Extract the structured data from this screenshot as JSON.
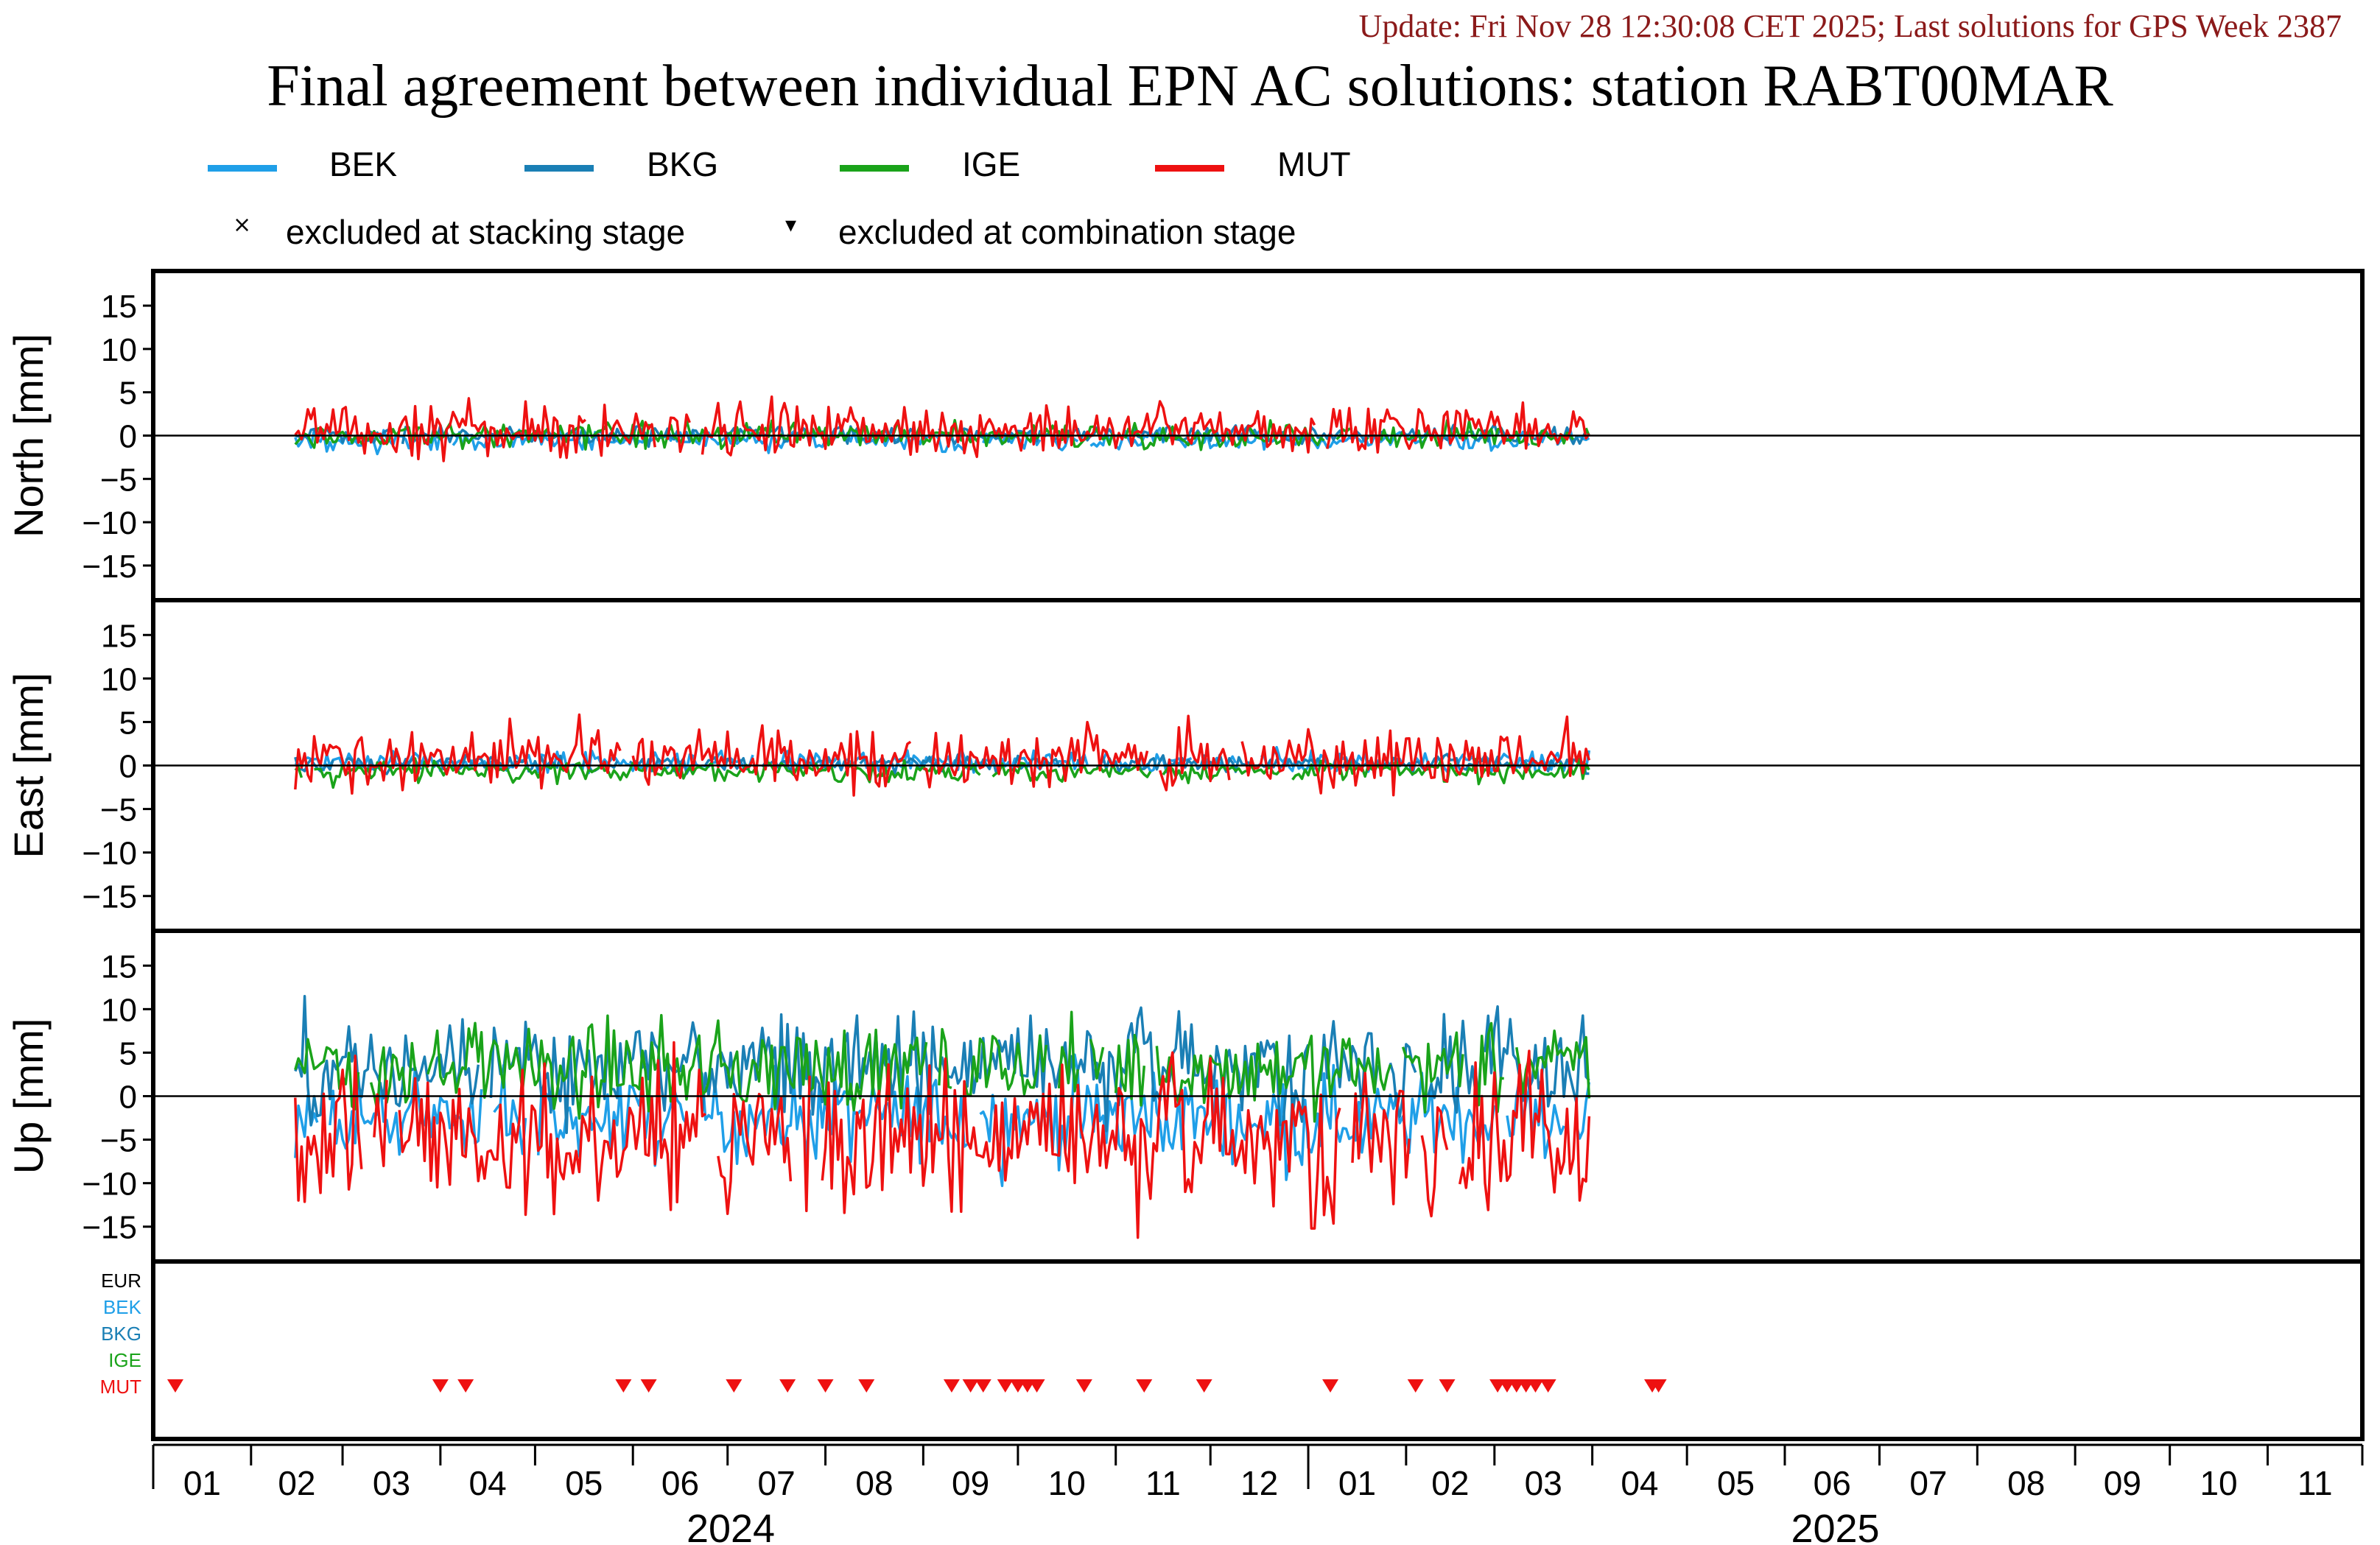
{
  "header": {
    "update_text": "Update: Fri Nov 28 12:30:08 CET 2025; Last solutions for GPS Week 2387",
    "title": "Final agreement between individual EPN AC solutions: station RABT00MAR"
  },
  "legend": {
    "series": [
      {
        "name": "BEK",
        "color": "#1f9fe8"
      },
      {
        "name": "BKG",
        "color": "#1a7fb5"
      },
      {
        "name": "IGE",
        "color": "#1aa31a"
      },
      {
        "name": "MUT",
        "color": "#ee1111"
      }
    ],
    "markers": [
      {
        "symbol": "×",
        "label": "excluded at stacking stage"
      },
      {
        "symbol": "▾",
        "label": "excluded at combination stage"
      }
    ]
  },
  "chart_data": {
    "type": "line",
    "x_domain": [
      "2024-01-01",
      "2025-12-01"
    ],
    "x_month_ticks": [
      "01",
      "02",
      "03",
      "04",
      "05",
      "06",
      "07",
      "08",
      "09",
      "10",
      "11",
      "12",
      "01",
      "02",
      "03",
      "04",
      "05",
      "06",
      "07",
      "08",
      "09",
      "10",
      "11"
    ],
    "x_year_labels": [
      "2024",
      "2025"
    ],
    "data_range": [
      "2024-02-15",
      "2025-03-31"
    ],
    "panels": [
      {
        "ylabel": "North [mm]",
        "ylim": [
          -19,
          19
        ],
        "yticks": [
          15,
          10,
          5,
          0,
          -5,
          -10,
          -15
        ],
        "series": [
          {
            "name": "BEK",
            "mean": -0.5,
            "amplitude": 0.6
          },
          {
            "name": "BKG",
            "mean": 0.1,
            "amplitude": 0.5
          },
          {
            "name": "IGE",
            "mean": 0.0,
            "amplitude": 0.7
          },
          {
            "name": "MUT",
            "mean": 0.6,
            "amplitude": 1.5
          }
        ]
      },
      {
        "ylabel": "East [mm]",
        "ylim": [
          -19,
          19
        ],
        "yticks": [
          15,
          10,
          5,
          0,
          -5,
          -10,
          -15
        ],
        "series": [
          {
            "name": "BEK",
            "mean": 0.4,
            "amplitude": 0.6
          },
          {
            "name": "BKG",
            "mean": 0.2,
            "amplitude": 0.5
          },
          {
            "name": "IGE",
            "mean": -0.6,
            "amplitude": 0.6
          },
          {
            "name": "MUT",
            "mean": 0.9,
            "amplitude": 1.8
          }
        ]
      },
      {
        "ylabel": "Up [mm]",
        "ylim": [
          -19,
          19
        ],
        "yticks": [
          15,
          10,
          5,
          0,
          -5,
          -10,
          -15
        ],
        "series": [
          {
            "name": "BEK",
            "mean": -2.5,
            "amplitude": 2.5
          },
          {
            "name": "BKG",
            "mean": 3.5,
            "amplitude": 3.0
          },
          {
            "name": "IGE",
            "mean": 3.2,
            "amplitude": 2.5
          },
          {
            "name": "MUT",
            "mean": -5.0,
            "amplitude": 4.5
          }
        ]
      }
    ],
    "exclusion_panel": {
      "rows": [
        {
          "label": "EUR",
          "color": "#000000"
        },
        {
          "label": "BEK",
          "color": "#1f9fe8"
        },
        {
          "label": "BKG",
          "color": "#1a7fb5"
        },
        {
          "label": "IGE",
          "color": "#1aa31a"
        },
        {
          "label": "MUT",
          "color": "#ee1111"
        }
      ],
      "mut_excluded_dates": [
        "2024-01-08",
        "2024-04-01",
        "2024-04-09",
        "2024-05-29",
        "2024-06-06",
        "2024-07-03",
        "2024-07-20",
        "2024-08-01",
        "2024-08-14",
        "2024-09-10",
        "2024-09-16",
        "2024-09-20",
        "2024-09-27",
        "2024-10-01",
        "2024-10-04",
        "2024-10-07",
        "2024-10-22",
        "2024-11-10",
        "2024-11-29",
        "2025-01-08",
        "2025-02-04",
        "2025-02-14",
        "2025-03-02",
        "2025-03-05",
        "2025-03-08",
        "2025-03-11",
        "2025-03-14",
        "2025-03-18",
        "2025-04-20",
        "2025-04-22"
      ]
    }
  }
}
